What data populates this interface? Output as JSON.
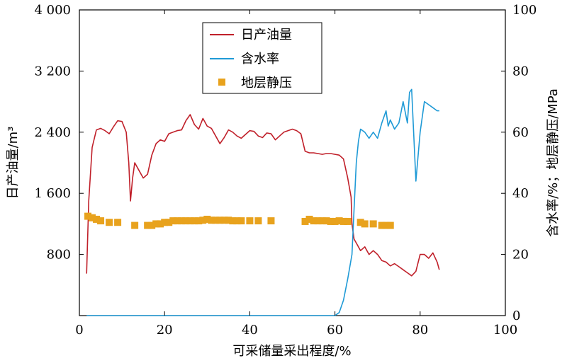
{
  "chart_data": {
    "type": "line",
    "xlabel": "可采储量采出程度/%",
    "ylabel_left": "日产油量/m³",
    "ylabel_right": "含水率/%；地层静压/MPa",
    "xlim": [
      0,
      100
    ],
    "ylim_left": [
      0,
      4000
    ],
    "ylim_right": [
      0,
      100
    ],
    "x_ticks": [
      0,
      20,
      40,
      60,
      80,
      100
    ],
    "x_tick_labels": [
      "0",
      "20",
      "40",
      "60",
      "80",
      "100"
    ],
    "y_left_ticks": [
      800,
      1600,
      2400,
      3200,
      4000
    ],
    "y_left_tick_labels": [
      "800",
      "1 600",
      "2 400",
      "3 200",
      "4 000"
    ],
    "y_right_ticks": [
      0,
      20,
      40,
      60,
      80,
      100
    ],
    "y_right_tick_labels": [
      "0",
      "20",
      "40",
      "60",
      "80",
      "100"
    ],
    "grid": false,
    "legend_position": "top-center",
    "series": [
      {
        "name": "日产油量",
        "axis": "left",
        "color": "#c0202a",
        "style": "line",
        "points": [
          [
            1.7,
            550
          ],
          [
            2.2,
            1500
          ],
          [
            3,
            2200
          ],
          [
            4,
            2430
          ],
          [
            5,
            2450
          ],
          [
            6,
            2420
          ],
          [
            7,
            2380
          ],
          [
            8,
            2470
          ],
          [
            9,
            2550
          ],
          [
            10,
            2540
          ],
          [
            11,
            2400
          ],
          [
            11.6,
            2000
          ],
          [
            12,
            1500
          ],
          [
            12.5,
            1800
          ],
          [
            13,
            2000
          ],
          [
            14,
            1900
          ],
          [
            15,
            1800
          ],
          [
            16,
            1850
          ],
          [
            17,
            2100
          ],
          [
            18,
            2250
          ],
          [
            19,
            2300
          ],
          [
            20,
            2280
          ],
          [
            21,
            2380
          ],
          [
            22,
            2400
          ],
          [
            23,
            2420
          ],
          [
            24,
            2430
          ],
          [
            25,
            2550
          ],
          [
            26,
            2630
          ],
          [
            27,
            2500
          ],
          [
            28,
            2440
          ],
          [
            29,
            2580
          ],
          [
            30,
            2480
          ],
          [
            31,
            2450
          ],
          [
            32,
            2350
          ],
          [
            33,
            2250
          ],
          [
            34,
            2330
          ],
          [
            35,
            2430
          ],
          [
            36,
            2400
          ],
          [
            37,
            2350
          ],
          [
            38,
            2320
          ],
          [
            39,
            2370
          ],
          [
            40,
            2420
          ],
          [
            41,
            2410
          ],
          [
            42,
            2350
          ],
          [
            43,
            2330
          ],
          [
            44,
            2390
          ],
          [
            45,
            2380
          ],
          [
            46,
            2300
          ],
          [
            47,
            2350
          ],
          [
            48,
            2400
          ],
          [
            49,
            2420
          ],
          [
            50,
            2440
          ],
          [
            51,
            2420
          ],
          [
            52,
            2380
          ],
          [
            53,
            2150
          ],
          [
            54,
            2130
          ],
          [
            55,
            2130
          ],
          [
            56,
            2120
          ],
          [
            57,
            2110
          ],
          [
            58,
            2120
          ],
          [
            59,
            2120
          ],
          [
            60,
            2110
          ],
          [
            61,
            2100
          ],
          [
            62,
            2050
          ],
          [
            63,
            1800
          ],
          [
            63.8,
            1550
          ],
          [
            64,
            1200
          ],
          [
            64.5,
            1000
          ],
          [
            65,
            950
          ],
          [
            66,
            850
          ],
          [
            67,
            900
          ],
          [
            68,
            800
          ],
          [
            69,
            850
          ],
          [
            70,
            800
          ],
          [
            71,
            720
          ],
          [
            72,
            700
          ],
          [
            73,
            650
          ],
          [
            74,
            680
          ],
          [
            75,
            640
          ],
          [
            76,
            600
          ],
          [
            77,
            560
          ],
          [
            78,
            520
          ],
          [
            79,
            580
          ],
          [
            80,
            800
          ],
          [
            81,
            800
          ],
          [
            82,
            750
          ],
          [
            83,
            820
          ],
          [
            84,
            700
          ],
          [
            84.5,
            600
          ]
        ]
      },
      {
        "name": "含水率",
        "axis": "right",
        "color": "#1f9ad6",
        "style": "line",
        "points": [
          [
            1.7,
            0
          ],
          [
            60,
            0
          ],
          [
            61,
            1
          ],
          [
            62,
            5
          ],
          [
            63,
            12
          ],
          [
            64,
            20
          ],
          [
            64.5,
            35
          ],
          [
            65,
            50
          ],
          [
            65.5,
            57
          ],
          [
            66,
            61
          ],
          [
            67,
            60
          ],
          [
            68,
            58
          ],
          [
            69,
            60
          ],
          [
            70,
            58
          ],
          [
            71,
            63
          ],
          [
            72,
            67
          ],
          [
            72.5,
            62
          ],
          [
            73,
            64
          ],
          [
            74,
            61
          ],
          [
            75,
            63
          ],
          [
            76,
            70
          ],
          [
            77,
            63
          ],
          [
            77.5,
            73
          ],
          [
            78,
            74
          ],
          [
            79,
            44
          ],
          [
            80,
            60
          ],
          [
            81,
            70
          ],
          [
            82,
            69
          ],
          [
            83,
            68
          ],
          [
            84,
            67
          ],
          [
            84.5,
            67
          ]
        ]
      },
      {
        "name": "地层静压",
        "axis": "right",
        "color": "#e8a21d",
        "style": "markers",
        "points": [
          [
            2,
            32.5
          ],
          [
            3,
            32
          ],
          [
            4,
            31.5
          ],
          [
            5,
            31
          ],
          [
            7,
            30.5
          ],
          [
            9,
            30.5
          ],
          [
            13,
            29.5
          ],
          [
            16,
            29.5
          ],
          [
            17,
            29.5
          ],
          [
            18,
            30
          ],
          [
            19,
            30
          ],
          [
            20,
            30.5
          ],
          [
            21,
            30.5
          ],
          [
            22,
            31
          ],
          [
            23,
            31
          ],
          [
            24,
            31
          ],
          [
            25,
            31
          ],
          [
            26,
            31
          ],
          [
            27,
            31
          ],
          [
            28,
            31
          ],
          [
            29,
            31.2
          ],
          [
            30,
            31.5
          ],
          [
            31,
            31.2
          ],
          [
            32,
            31.2
          ],
          [
            33,
            31.2
          ],
          [
            34,
            31.2
          ],
          [
            35,
            31.2
          ],
          [
            36,
            31
          ],
          [
            37,
            31
          ],
          [
            38,
            31
          ],
          [
            40,
            31
          ],
          [
            42,
            31
          ],
          [
            45,
            31
          ],
          [
            53,
            30.8
          ],
          [
            54,
            31.5
          ],
          [
            55,
            31
          ],
          [
            56,
            31
          ],
          [
            57,
            31
          ],
          [
            58,
            31
          ],
          [
            59,
            30.8
          ],
          [
            60,
            30.8
          ],
          [
            61,
            31
          ],
          [
            62,
            30.8
          ],
          [
            63,
            30.8
          ],
          [
            66,
            30.5
          ],
          [
            67,
            30
          ],
          [
            69,
            30
          ],
          [
            71,
            29.5
          ],
          [
            72,
            29.5
          ],
          [
            73,
            29.5
          ]
        ]
      }
    ]
  }
}
